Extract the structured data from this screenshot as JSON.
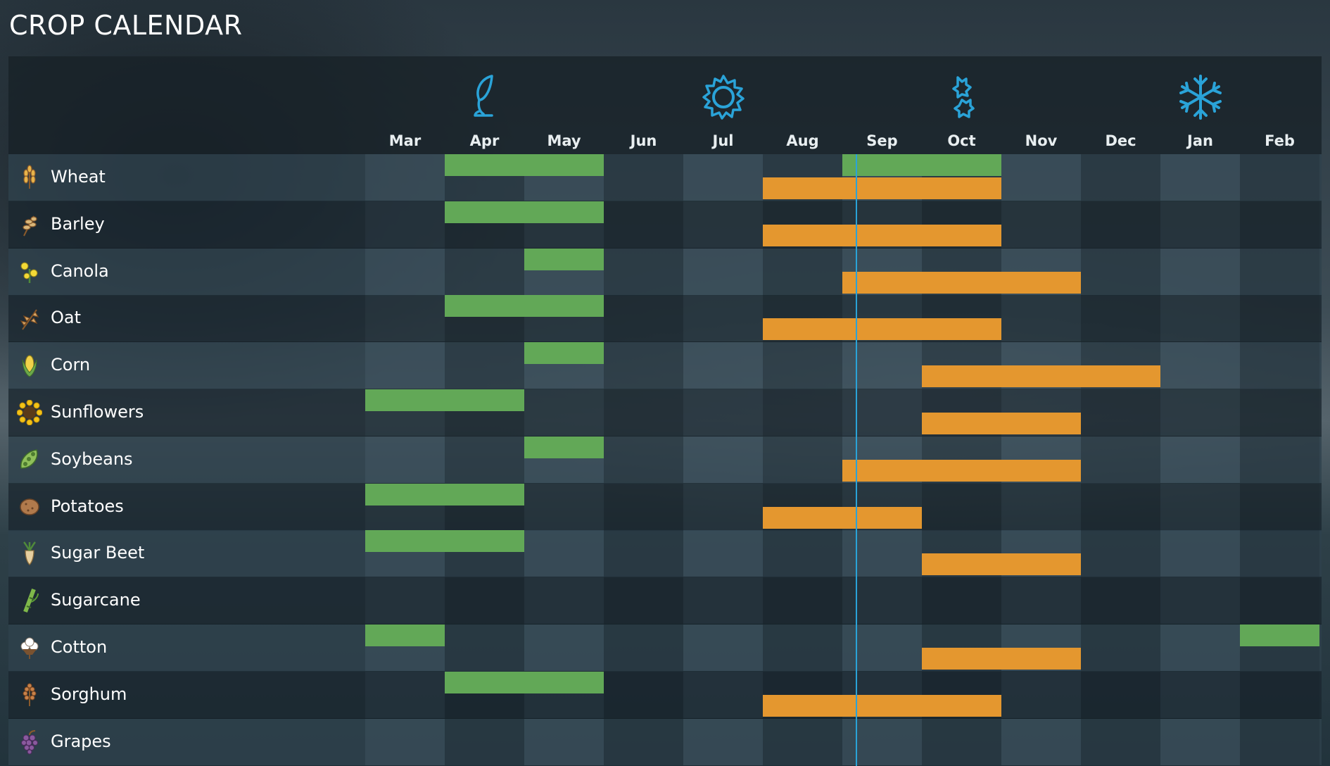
{
  "title": "CROP CALENDAR",
  "colors": {
    "plant": "#62a857",
    "harvest": "#e4972f",
    "today": "#2aa3d8",
    "season_icon": "#2aa3d8"
  },
  "seasons": [
    {
      "name": "spring",
      "icon": "leaf-icon",
      "month_index": 1
    },
    {
      "name": "summer",
      "icon": "sun-icon",
      "month_index": 4
    },
    {
      "name": "autumn",
      "icon": "falling-leaves-icon",
      "month_index": 7
    },
    {
      "name": "winter",
      "icon": "snowflake-icon",
      "month_index": 10
    }
  ],
  "months": [
    "Mar",
    "Apr",
    "May",
    "Jun",
    "Jul",
    "Aug",
    "Sep",
    "Oct",
    "Nov",
    "Dec",
    "Jan",
    "Feb"
  ],
  "current_date_month_fraction": 6.17,
  "crops": [
    {
      "name": "Wheat",
      "icon": "wheat-icon",
      "plant": [
        [
          1,
          3
        ],
        [
          6,
          8
        ]
      ],
      "harvest": [
        [
          5,
          8
        ]
      ]
    },
    {
      "name": "Barley",
      "icon": "barley-icon",
      "plant": [
        [
          1,
          3
        ]
      ],
      "harvest": [
        [
          5,
          8
        ]
      ]
    },
    {
      "name": "Canola",
      "icon": "canola-icon",
      "plant": [
        [
          2,
          3
        ]
      ],
      "harvest": [
        [
          6,
          9
        ]
      ]
    },
    {
      "name": "Oat",
      "icon": "oat-icon",
      "plant": [
        [
          1,
          3
        ]
      ],
      "harvest": [
        [
          5,
          8
        ]
      ]
    },
    {
      "name": "Corn",
      "icon": "corn-icon",
      "plant": [
        [
          2,
          3
        ]
      ],
      "harvest": [
        [
          7,
          10
        ]
      ]
    },
    {
      "name": "Sunflowers",
      "icon": "sunflower-icon",
      "plant": [
        [
          0,
          2
        ]
      ],
      "harvest": [
        [
          7,
          9
        ]
      ]
    },
    {
      "name": "Soybeans",
      "icon": "soybean-icon",
      "plant": [
        [
          2,
          3
        ]
      ],
      "harvest": [
        [
          6,
          9
        ]
      ]
    },
    {
      "name": "Potatoes",
      "icon": "potato-icon",
      "plant": [
        [
          0,
          2
        ]
      ],
      "harvest": [
        [
          5,
          7
        ]
      ]
    },
    {
      "name": "Sugar Beet",
      "icon": "sugar-beet-icon",
      "plant": [
        [
          0,
          2
        ]
      ],
      "harvest": [
        [
          7,
          9
        ]
      ]
    },
    {
      "name": "Sugarcane",
      "icon": "sugarcane-icon",
      "plant": [],
      "harvest": []
    },
    {
      "name": "Cotton",
      "icon": "cotton-icon",
      "plant": [
        [
          0,
          1
        ],
        [
          11,
          12
        ]
      ],
      "harvest": [
        [
          7,
          9
        ]
      ]
    },
    {
      "name": "Sorghum",
      "icon": "sorghum-icon",
      "plant": [
        [
          1,
          3
        ]
      ],
      "harvest": [
        [
          5,
          8
        ]
      ]
    },
    {
      "name": "Grapes",
      "icon": "grapes-icon",
      "plant": [],
      "harvest": []
    }
  ]
}
